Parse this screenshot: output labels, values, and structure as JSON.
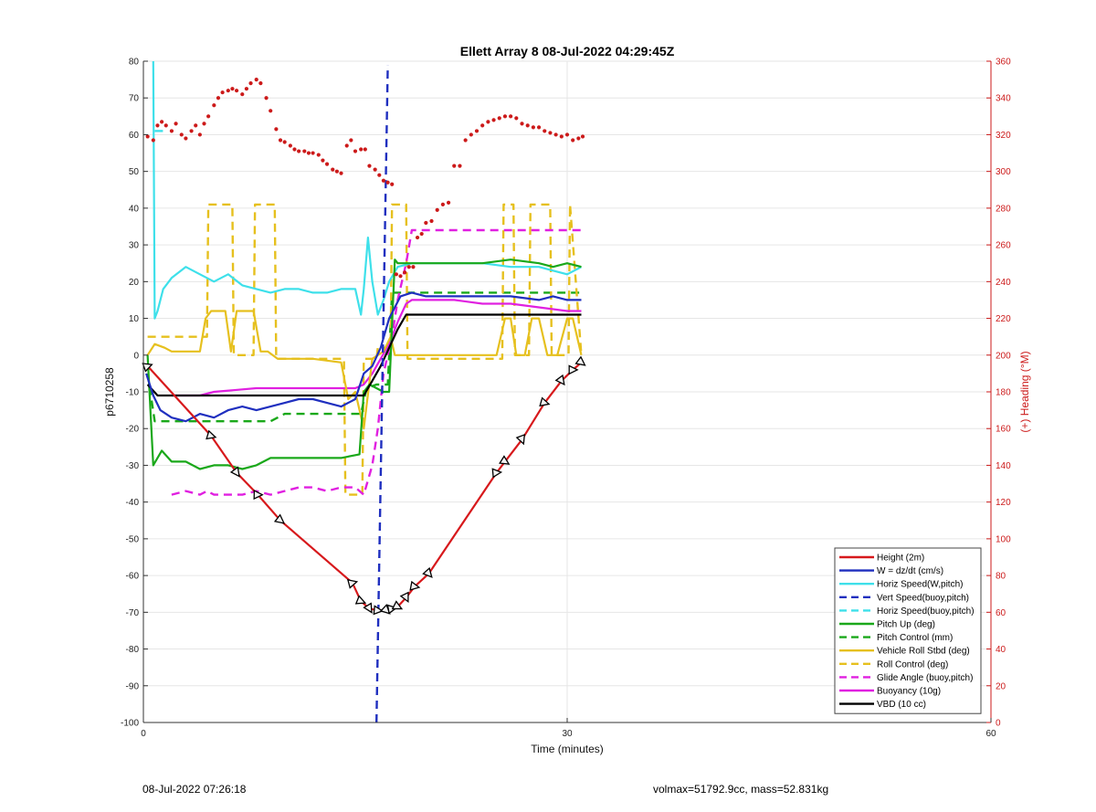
{
  "chart_data": {
    "type": "line",
    "title": "Ellett Array 8 08-Jul-2022 04:29:45Z",
    "xlabel": "Time (minutes)",
    "ylabel": "p6710258",
    "y2label": "(+) Heading (°M)",
    "xlim": [
      0,
      60
    ],
    "ylim": [
      -100,
      80
    ],
    "y2lim": [
      0,
      360
    ],
    "x_ticks": [
      0,
      30,
      60
    ],
    "y_ticks": [
      80,
      70,
      60,
      50,
      40,
      30,
      20,
      10,
      0,
      -10,
      -20,
      -30,
      -40,
      -50,
      -60,
      -70,
      -80,
      -90,
      -100
    ],
    "y2_ticks": [
      360,
      340,
      320,
      300,
      280,
      260,
      240,
      220,
      200,
      180,
      160,
      140,
      120,
      100,
      80,
      60,
      40,
      20,
      0
    ],
    "grid": true,
    "legend_position": "bottom-right",
    "series": [
      {
        "name": "Height (2m)",
        "color": "#d7191c",
        "dash": "solid",
        "marker": "triangle",
        "x": [
          0.3,
          4.8,
          6.6,
          8.1,
          9.7,
          14.8,
          15.4,
          16.0,
          16.6,
          17.2,
          17.6,
          18.0,
          18.6,
          19.2,
          20.2,
          25.0,
          25.6,
          26.8,
          28.4,
          29.6,
          30.4,
          31.0
        ],
        "y": [
          -3,
          -22,
          -32,
          -38,
          -45,
          -62,
          -67,
          -69,
          -69.5,
          -69.5,
          -69,
          -68.5,
          -66,
          -63,
          -59.5,
          -32,
          -29,
          -23,
          -13,
          -7,
          -4,
          -2
        ]
      },
      {
        "name": "W = dz/dt (cm/s)",
        "color": "#1f2fbf",
        "dash": "solid",
        "x": [
          0.2,
          0.7,
          1.2,
          2.0,
          3.0,
          4.0,
          5.0,
          6.0,
          7.0,
          8.0,
          9.0,
          10.0,
          11.0,
          12.0,
          13.0,
          14.0,
          15.0,
          15.6,
          16.2,
          16.8,
          17.4,
          18.2,
          19.0,
          20.0,
          22.0,
          24.0,
          26.0,
          28.0,
          29.0,
          30.0,
          31.0
        ],
        "y": [
          -5,
          -11,
          -15,
          -17,
          -18,
          -16,
          -17,
          -15,
          -14,
          -15,
          -14,
          -13,
          -12,
          -12,
          -13,
          -14,
          -12,
          -5,
          -3,
          2,
          10,
          16,
          17,
          16,
          16,
          16,
          16,
          15,
          16,
          15,
          15
        ]
      },
      {
        "name": "Horiz Speed(W,pitch)",
        "color": "#3ee0ea",
        "dash": "solid",
        "x": [
          0.7,
          0.8,
          1.0,
          1.4,
          2.0,
          3.0,
          4.0,
          5.0,
          6.0,
          7.0,
          8.0,
          9.0,
          10.0,
          11.0,
          12.0,
          13.0,
          14.0,
          15.0,
          15.4,
          15.6,
          15.9,
          16.2,
          16.6,
          17.0,
          17.4,
          18.0,
          19.0,
          20.0,
          22.0,
          24.0,
          26.0,
          28.0,
          29.0,
          30.0,
          31.0
        ],
        "y": [
          80,
          10,
          12,
          18,
          21,
          24,
          22,
          20,
          22,
          19,
          18,
          17,
          18,
          18,
          17,
          17,
          18,
          18,
          11,
          18,
          32,
          20,
          11,
          15,
          20,
          24,
          25,
          25,
          25,
          25,
          24,
          24,
          23,
          22,
          24
        ]
      },
      {
        "name": "Vert Speed(buoy,pitch)",
        "color": "#1f2fbf",
        "dash": "dash",
        "x": [
          16.5,
          17.3
        ],
        "y": [
          -100,
          79
        ]
      },
      {
        "name": "Horiz Speed(buoy,pitch)",
        "color": "#3ee0ea",
        "dash": "dash",
        "x": [
          0.8,
          1.5
        ],
        "y": [
          61,
          61
        ]
      },
      {
        "name": "Pitch Up (deg)",
        "color": "#1aa81a",
        "dash": "solid",
        "x": [
          0.3,
          0.7,
          1.3,
          2.0,
          3.0,
          4.0,
          5.0,
          6.0,
          7.0,
          8.0,
          9.0,
          10.0,
          12.0,
          14.0,
          15.3,
          15.6,
          16.0,
          16.5,
          17.0,
          17.4,
          17.8,
          18.0,
          19.0,
          20.0,
          22.0,
          24.0,
          26.0,
          28.0,
          29.0,
          30.0,
          31.0
        ],
        "y": [
          0,
          -30,
          -26,
          -29,
          -29,
          -31,
          -30,
          -30,
          -31,
          -30,
          -28,
          -28,
          -28,
          -28,
          -27,
          -10,
          -8,
          -9,
          -10,
          -10,
          26,
          25,
          25,
          25,
          25,
          25,
          26,
          25,
          24,
          25,
          24
        ]
      },
      {
        "name": "Pitch Control (mm)",
        "color": "#1aa81a",
        "dash": "dash",
        "x": [
          0.3,
          0.8,
          4.0,
          6.0,
          7.0,
          8.0,
          9.0,
          10.0,
          12.0,
          14.0,
          15.4,
          15.8,
          16.5,
          17.3,
          17.6,
          18.0,
          20.0,
          24.0,
          28.0,
          31.0
        ],
        "y": [
          -5,
          -18,
          -18,
          -18,
          -18,
          -18,
          -18,
          -16,
          -16,
          -16,
          -16,
          -9,
          -8,
          -8,
          17,
          17,
          17,
          17,
          17,
          17
        ]
      },
      {
        "name": "Vehicle Roll Stbd (deg)",
        "color": "#e6c01e",
        "dash": "solid",
        "x": [
          0.3,
          0.8,
          1.5,
          2.0,
          3.0,
          4.0,
          4.4,
          4.8,
          5.8,
          6.2,
          6.6,
          7.8,
          8.3,
          8.8,
          9.5,
          12.0,
          14.0,
          14.5,
          15.0,
          15.6,
          16.2,
          16.6,
          17.0,
          17.5,
          17.8,
          19.0,
          22.0,
          24.0,
          25.0,
          25.6,
          26.0,
          26.4,
          27.0,
          27.5,
          28.0,
          28.6,
          29.0,
          29.3,
          30.0,
          30.4,
          31.0
        ],
        "y": [
          0,
          3,
          2,
          1,
          1,
          1,
          10,
          12,
          12,
          1,
          12,
          12,
          1,
          1,
          -1,
          -1,
          -2,
          -12,
          -10,
          -20,
          -1,
          0,
          1,
          5,
          0,
          0,
          0,
          0,
          0,
          10,
          10,
          0,
          0,
          10,
          10,
          0,
          0,
          0,
          10,
          10,
          0
        ]
      },
      {
        "name": "Roll Control (deg)",
        "color": "#e6c01e",
        "dash": "dash",
        "x": [
          0.3,
          1.0,
          3.0,
          4.5,
          4.6,
          6.3,
          6.4,
          7.8,
          7.9,
          9.3,
          9.4,
          13.0,
          14.2,
          14.3,
          15.5,
          15.6,
          16.5,
          16.6,
          17.5,
          17.6,
          18.6,
          18.7,
          24.0,
          25.4,
          25.5,
          26.2,
          26.3,
          27.3,
          27.4,
          28.8,
          28.9,
          30.1,
          30.2,
          31.0
        ],
        "y": [
          5,
          5,
          5,
          5,
          41,
          41,
          0,
          0,
          41,
          41,
          -1,
          -1,
          -1,
          -38,
          -38,
          -1,
          -1,
          2,
          2,
          41,
          41,
          -1,
          -1,
          -1,
          41,
          41,
          0,
          0,
          41,
          41,
          0,
          0,
          41,
          0
        ]
      },
      {
        "name": "Glide Angle (buoy,pitch)",
        "color": "#e020e0",
        "dash": "dash",
        "x": [
          2.0,
          3.0,
          4.0,
          4.5,
          5.0,
          6.0,
          7.0,
          8.0,
          9.0,
          10.0,
          11.0,
          12.0,
          13.0,
          14.0,
          15.0,
          15.6,
          16.2,
          16.6,
          17.0,
          17.6,
          18.0,
          18.6,
          19.0,
          20.0,
          22.0,
          24.0,
          26.0,
          28.0,
          29.0,
          30.0,
          31.0
        ],
        "y": [
          -38,
          -37,
          -38,
          -37,
          -38,
          -38,
          -38,
          -37,
          -38,
          -37,
          -36,
          -36,
          -37,
          -36,
          -36,
          -38,
          -30,
          -20,
          -5,
          5,
          15,
          25,
          34,
          34,
          34,
          34,
          34,
          34,
          34,
          34,
          34
        ]
      },
      {
        "name": "Buoyancy (10g)",
        "color": "#e020e0",
        "dash": "solid",
        "x": [
          2.0,
          4.0,
          5.0,
          8.0,
          10.0,
          12.0,
          14.0,
          15.0,
          15.6,
          16.2,
          16.8,
          17.4,
          18.0,
          18.6,
          19.0,
          20.0,
          22.0,
          24.0,
          26.0,
          28.0,
          30.0,
          31.0
        ],
        "y": [
          -11,
          -11,
          -10,
          -9,
          -9,
          -9,
          -9,
          -9,
          -8,
          -5,
          -1,
          3,
          9,
          14,
          15,
          15,
          15,
          14,
          14,
          13,
          12,
          12
        ]
      },
      {
        "name": "VBD (10 cc)",
        "color": "#000000",
        "dash": "solid",
        "x": [
          0.3,
          1.0,
          2.0,
          4.0,
          6.0,
          8.0,
          10.0,
          12.0,
          14.0,
          15.0,
          15.6,
          16.2,
          16.8,
          17.4,
          18.0,
          18.6,
          20.0,
          22.0,
          24.0,
          26.0,
          28.0,
          30.0,
          31.0
        ],
        "y": [
          -8,
          -11,
          -11,
          -11,
          -11,
          -11,
          -11,
          -11,
          -11,
          -11,
          -11,
          -7,
          -3,
          2,
          7,
          11,
          11,
          11,
          11,
          11,
          11,
          11,
          11
        ]
      }
    ],
    "heading_points": {
      "name": "Heading",
      "color": "#cc1a1a",
      "axis": "right",
      "x": [
        0.3,
        0.7,
        1.0,
        1.3,
        1.6,
        2.0,
        2.3,
        2.7,
        3.0,
        3.4,
        3.7,
        4.0,
        4.3,
        4.6,
        5.0,
        5.3,
        5.6,
        6.0,
        6.3,
        6.6,
        7.0,
        7.3,
        7.6,
        8.0,
        8.3,
        8.7,
        9.0,
        9.4,
        9.7,
        10.0,
        10.4,
        10.7,
        11.0,
        11.4,
        11.7,
        12.0,
        12.4,
        12.7,
        13.0,
        13.4,
        13.7,
        14.0,
        14.4,
        14.7,
        15.0,
        15.4,
        15.7,
        16.0,
        16.4,
        16.7,
        17.0,
        17.3,
        17.6,
        17.9,
        18.2,
        18.5,
        18.8,
        19.1,
        19.4,
        19.7,
        20.0,
        20.4,
        20.8,
        21.2,
        21.6,
        22.0,
        22.4,
        22.8,
        23.2,
        23.6,
        24.0,
        24.4,
        24.8,
        25.2,
        25.6,
        26.0,
        26.4,
        26.8,
        27.2,
        27.6,
        28.0,
        28.4,
        28.8,
        29.2,
        29.6,
        30.0,
        30.4,
        30.8,
        31.1
      ],
      "y": [
        319,
        317,
        325,
        327,
        325,
        322,
        326,
        320,
        318,
        322,
        325,
        320,
        326,
        330,
        336,
        340,
        343,
        344,
        345,
        344,
        342,
        345,
        348,
        350,
        348,
        340,
        333,
        323,
        317,
        316,
        314,
        312,
        311,
        311,
        310,
        310,
        309,
        306,
        304,
        301,
        300,
        299,
        314,
        317,
        311,
        312,
        312,
        303,
        301,
        298,
        295,
        294,
        293,
        244,
        243,
        245,
        248,
        248,
        264,
        266,
        272,
        273,
        279,
        282,
        283,
        303,
        303,
        317,
        320,
        322,
        325,
        327,
        328,
        329,
        330,
        330,
        329,
        326,
        325,
        324,
        324,
        322,
        321,
        320,
        319,
        320,
        317,
        318,
        319
      ]
    }
  },
  "footer": {
    "date": "08-Jul-2022 07:26:18",
    "stats": "volmax=51792.9cc, mass=52.831kg"
  }
}
